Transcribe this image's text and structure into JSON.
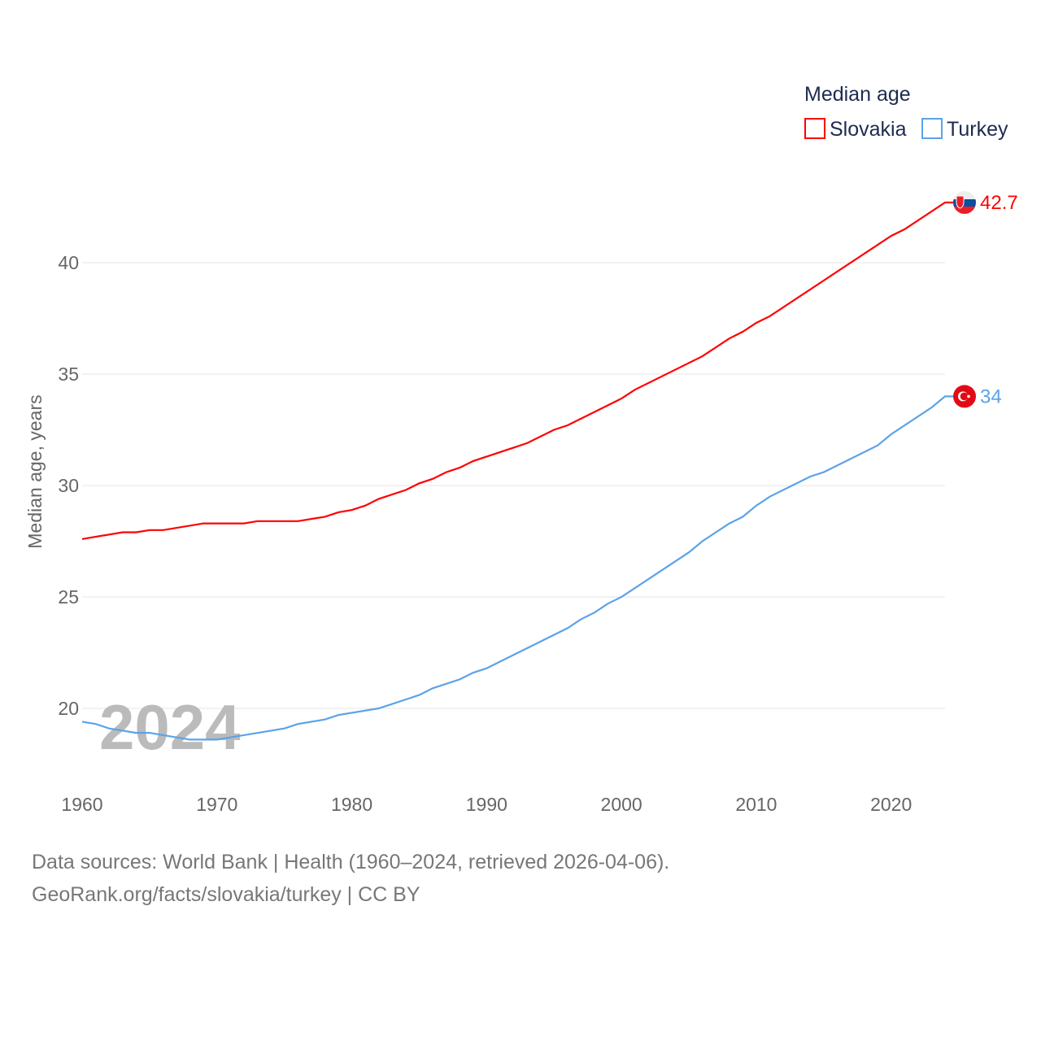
{
  "chart_data": {
    "type": "line",
    "title": "",
    "legend_title": "Median age",
    "ylabel": "Median age, years",
    "xlabel": "",
    "xlim": [
      1960,
      2024
    ],
    "ylim": [
      17,
      44
    ],
    "yticks": [
      20,
      25,
      30,
      35,
      40
    ],
    "xticks": [
      1960,
      1970,
      1980,
      1990,
      2000,
      2010,
      2020
    ],
    "grid": true,
    "legend_position": "top-right",
    "watermark_year": "2024",
    "series": [
      {
        "name": "Slovakia",
        "color": "#ff0000",
        "end_label": "42.7",
        "flag": "slovakia-flag",
        "points": [
          [
            1960,
            27.6
          ],
          [
            1963,
            27.9
          ],
          [
            1964,
            27.9
          ],
          [
            1965,
            28.0
          ],
          [
            1966,
            28.0
          ],
          [
            1969,
            28.3
          ],
          [
            1972,
            28.3
          ],
          [
            1973,
            28.4
          ],
          [
            1976,
            28.4
          ],
          [
            1978,
            28.6
          ],
          [
            1979,
            28.8
          ],
          [
            1980,
            28.9
          ],
          [
            1981,
            29.1
          ],
          [
            1982,
            29.4
          ],
          [
            1984,
            29.8
          ],
          [
            1985,
            30.1
          ],
          [
            1986,
            30.3
          ],
          [
            1987,
            30.6
          ],
          [
            1988,
            30.8
          ],
          [
            1989,
            31.1
          ],
          [
            1993,
            31.9
          ],
          [
            1995,
            32.5
          ],
          [
            1996,
            32.7
          ],
          [
            2000,
            33.9
          ],
          [
            2001,
            34.3
          ],
          [
            2006,
            35.8
          ],
          [
            2008,
            36.6
          ],
          [
            2009,
            36.9
          ],
          [
            2010,
            37.3
          ],
          [
            2011,
            37.6
          ],
          [
            2020,
            41.2
          ],
          [
            2021,
            41.5
          ],
          [
            2024,
            42.7
          ]
        ]
      },
      {
        "name": "Turkey",
        "color": "#5ba3e8",
        "end_label": "34",
        "flag": "turkey-flag",
        "points": [
          [
            1960,
            19.4
          ],
          [
            1961,
            19.3
          ],
          [
            1962,
            19.1
          ],
          [
            1964,
            18.9
          ],
          [
            1965,
            18.9
          ],
          [
            1966,
            18.8
          ],
          [
            1968,
            18.6
          ],
          [
            1970,
            18.6
          ],
          [
            1972,
            18.8
          ],
          [
            1975,
            19.1
          ],
          [
            1976,
            19.3
          ],
          [
            1978,
            19.5
          ],
          [
            1979,
            19.7
          ],
          [
            1982,
            20.0
          ],
          [
            1985,
            20.6
          ],
          [
            1986,
            20.9
          ],
          [
            1988,
            21.3
          ],
          [
            1989,
            21.6
          ],
          [
            1990,
            21.8
          ],
          [
            1996,
            23.6
          ],
          [
            1997,
            24.0
          ],
          [
            1998,
            24.3
          ],
          [
            1999,
            24.7
          ],
          [
            2000,
            25.0
          ],
          [
            2005,
            27.0
          ],
          [
            2006,
            27.5
          ],
          [
            2008,
            28.3
          ],
          [
            2009,
            28.6
          ],
          [
            2010,
            29.1
          ],
          [
            2011,
            29.5
          ],
          [
            2014,
            30.4
          ],
          [
            2015,
            30.6
          ],
          [
            2019,
            31.8
          ],
          [
            2020,
            32.3
          ],
          [
            2023,
            33.5
          ],
          [
            2024,
            34.0
          ]
        ]
      }
    ]
  },
  "footer": {
    "line1": "Data sources: World Bank | Health (1960–2024, retrieved 2026-04-06).",
    "line2": "GeoRank.org/facts/slovakia/turkey | CC BY"
  }
}
